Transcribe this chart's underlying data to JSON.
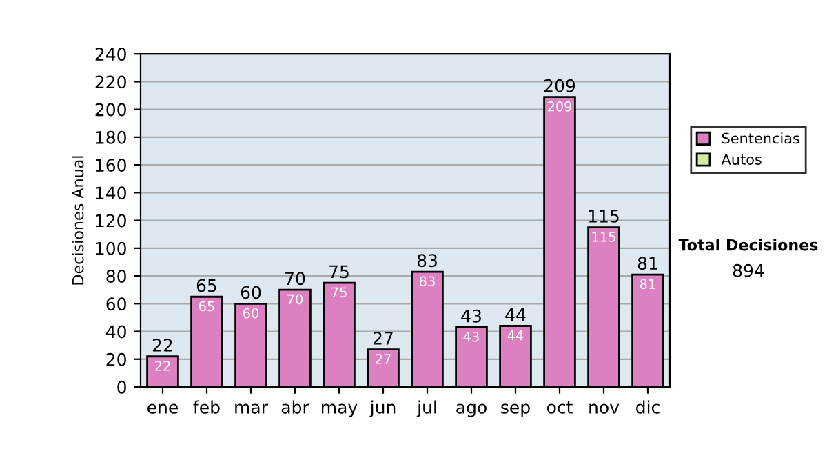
{
  "chart_data": {
    "type": "bar",
    "stacked": true,
    "ylabel": "Decisiones Anual",
    "categories": [
      "ene",
      "feb",
      "mar",
      "abr",
      "may",
      "jun",
      "jul",
      "ago",
      "sep",
      "oct",
      "nov",
      "dic"
    ],
    "series": [
      {
        "name": "Sentencias",
        "color": "#dd80c2",
        "values": [
          22,
          65,
          60,
          70,
          75,
          27,
          83,
          43,
          44,
          209,
          115,
          81
        ],
        "value_labels": [
          "22",
          "65",
          "60",
          "70",
          "75",
          "27",
          "83",
          "43",
          "44",
          "209",
          "115",
          "81"
        ]
      },
      {
        "name": "Autos",
        "color": "#d6eaa0",
        "values": [
          null,
          null,
          null,
          null,
          null,
          null,
          null,
          null,
          null,
          null,
          null,
          null
        ]
      }
    ],
    "totals": [
      "22",
      "65",
      "60",
      "70",
      "75",
      "27",
      "83",
      "43",
      "44",
      "209",
      "115",
      "81"
    ],
    "ylim": [
      0,
      240
    ],
    "yticks": [
      0,
      20,
      40,
      60,
      80,
      100,
      120,
      140,
      160,
      180,
      200,
      220,
      240
    ],
    "grid": "y",
    "legend": "right",
    "annotations": [
      "Total Decisiones",
      "894"
    ]
  }
}
